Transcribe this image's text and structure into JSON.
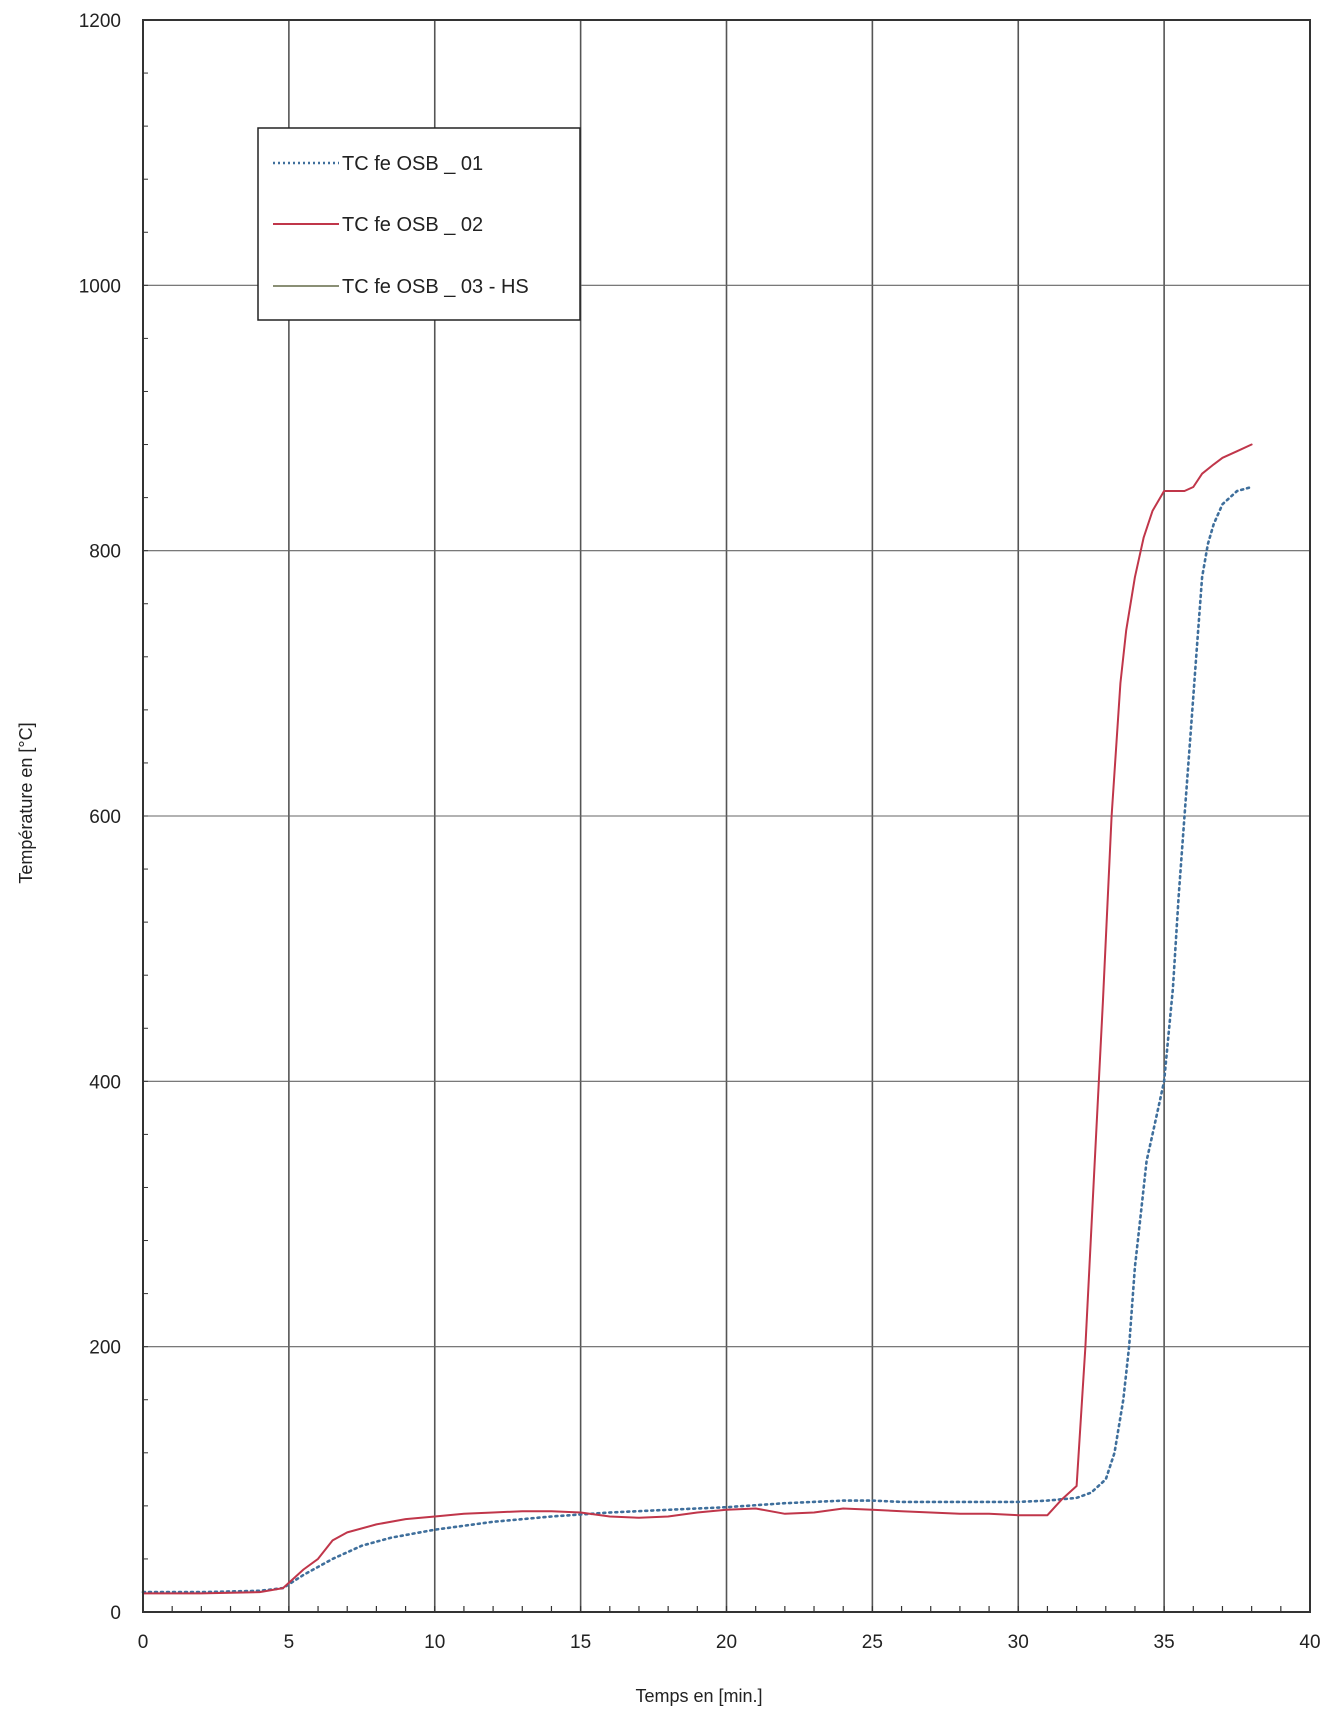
{
  "chart_data": {
    "type": "line",
    "xlabel": "Temps en [min.]",
    "ylabel": "Température  en [°C]",
    "xlim": [
      0,
      40
    ],
    "ylim": [
      0,
      1200
    ],
    "xticks": [
      "0",
      "5",
      "10",
      "15",
      "20",
      "25",
      "30",
      "35",
      "40"
    ],
    "yticks": [
      "0",
      "200",
      "400",
      "600",
      "800",
      "1000",
      "1200"
    ],
    "grid": true,
    "legend_position": "top-left",
    "series": [
      {
        "name": "TC fe OSB _ 01",
        "color": "#3f6f9c",
        "style": "dotted",
        "x": [
          0,
          2,
          4,
          4.8,
          5.5,
          6.5,
          7.5,
          8.5,
          10,
          12,
          14,
          16,
          18,
          20,
          22,
          24,
          25,
          26,
          28,
          30,
          31,
          32,
          32.5,
          33,
          33.3,
          33.6,
          33.8,
          34,
          34.2,
          34.4,
          34.6,
          34.8,
          35,
          35.3,
          35.5,
          35.7,
          35.9,
          36.1,
          36.3,
          36.5,
          36.7,
          37,
          37.5,
          38
        ],
        "y": [
          15,
          15,
          16,
          18,
          28,
          40,
          50,
          56,
          62,
          68,
          72,
          75,
          77,
          79,
          82,
          84,
          84,
          83,
          83,
          83,
          84,
          86,
          90,
          100,
          120,
          160,
          200,
          260,
          300,
          340,
          360,
          380,
          400,
          470,
          540,
          600,
          660,
          720,
          780,
          805,
          820,
          835,
          845,
          848
        ]
      },
      {
        "name": "TC fe OSB _ 02",
        "color": "#c0364a",
        "style": "solid",
        "x": [
          0,
          2,
          4,
          4.8,
          5.5,
          6,
          6.5,
          7,
          8,
          9,
          10,
          11,
          12,
          13,
          14,
          15,
          16,
          17,
          18,
          19,
          20,
          21,
          22,
          23,
          24,
          25,
          26,
          27,
          28,
          29,
          30,
          31,
          31.5,
          32,
          32.3,
          32.6,
          32.9,
          33.2,
          33.5,
          33.7,
          34,
          34.3,
          34.6,
          35,
          35.3,
          35.7,
          36,
          36.3,
          36.7,
          37,
          37.5,
          38
        ],
        "y": [
          14,
          14,
          15,
          18,
          32,
          40,
          54,
          60,
          66,
          70,
          72,
          74,
          75,
          76,
          76,
          75,
          72,
          71,
          72,
          75,
          77,
          78,
          74,
          75,
          78,
          77,
          76,
          75,
          74,
          74,
          73,
          73,
          85,
          95,
          200,
          330,
          460,
          600,
          700,
          740,
          780,
          810,
          830,
          845,
          845,
          845,
          848,
          858,
          865,
          870,
          875,
          880
        ]
      },
      {
        "name": "TC fe OSB _ 03 - HS",
        "color": "#8a8f75",
        "style": "solid",
        "x": [],
        "y": []
      }
    ]
  }
}
